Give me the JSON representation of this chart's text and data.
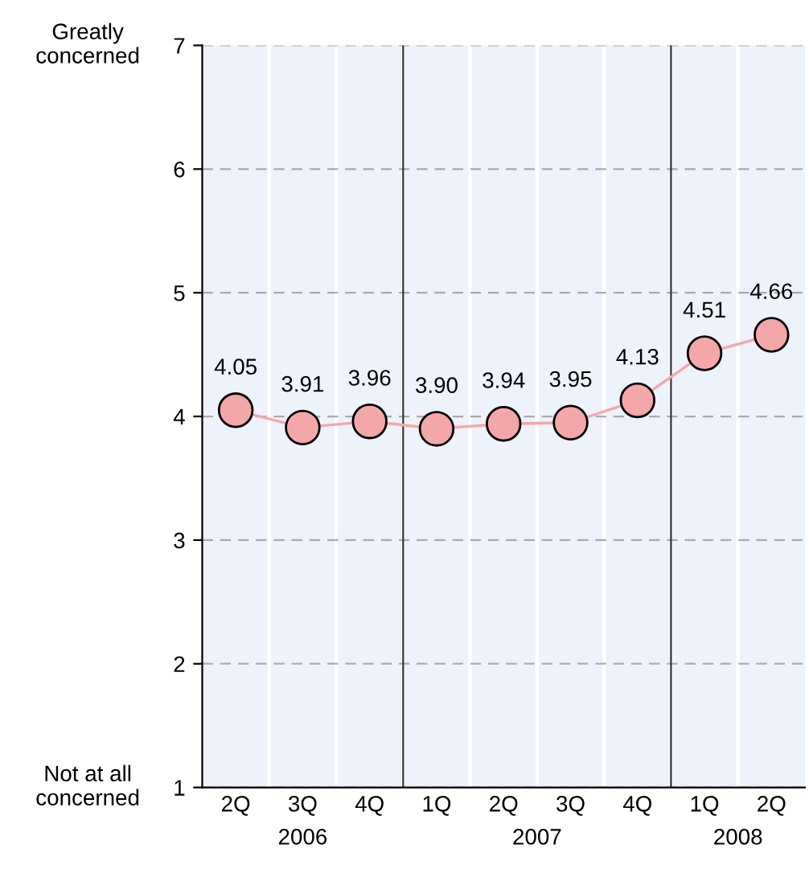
{
  "chart_data": {
    "type": "line",
    "categories": [
      "2Q",
      "3Q",
      "4Q",
      "1Q",
      "2Q",
      "3Q",
      "4Q",
      "1Q",
      "2Q"
    ],
    "series": [
      {
        "color": "#f4a7a9",
        "values": [
          4.05,
          3.91,
          3.96,
          3.9,
          3.94,
          3.95,
          4.13,
          4.51,
          4.66
        ],
        "value_labels": [
          "4.05",
          "3.91",
          "3.96",
          "3.90",
          "3.94",
          "3.95",
          "4.13",
          "4.51",
          "4.66"
        ]
      }
    ],
    "ylim": [
      1,
      7
    ],
    "yticks": [
      1,
      2,
      3,
      4,
      5,
      6,
      7
    ],
    "grid": "y",
    "marker": "circle",
    "line_style": "solid",
    "annotations": [
      "Greatly concerned",
      "Not at all concerned",
      "2006",
      "2007",
      "2008"
    ]
  }
}
